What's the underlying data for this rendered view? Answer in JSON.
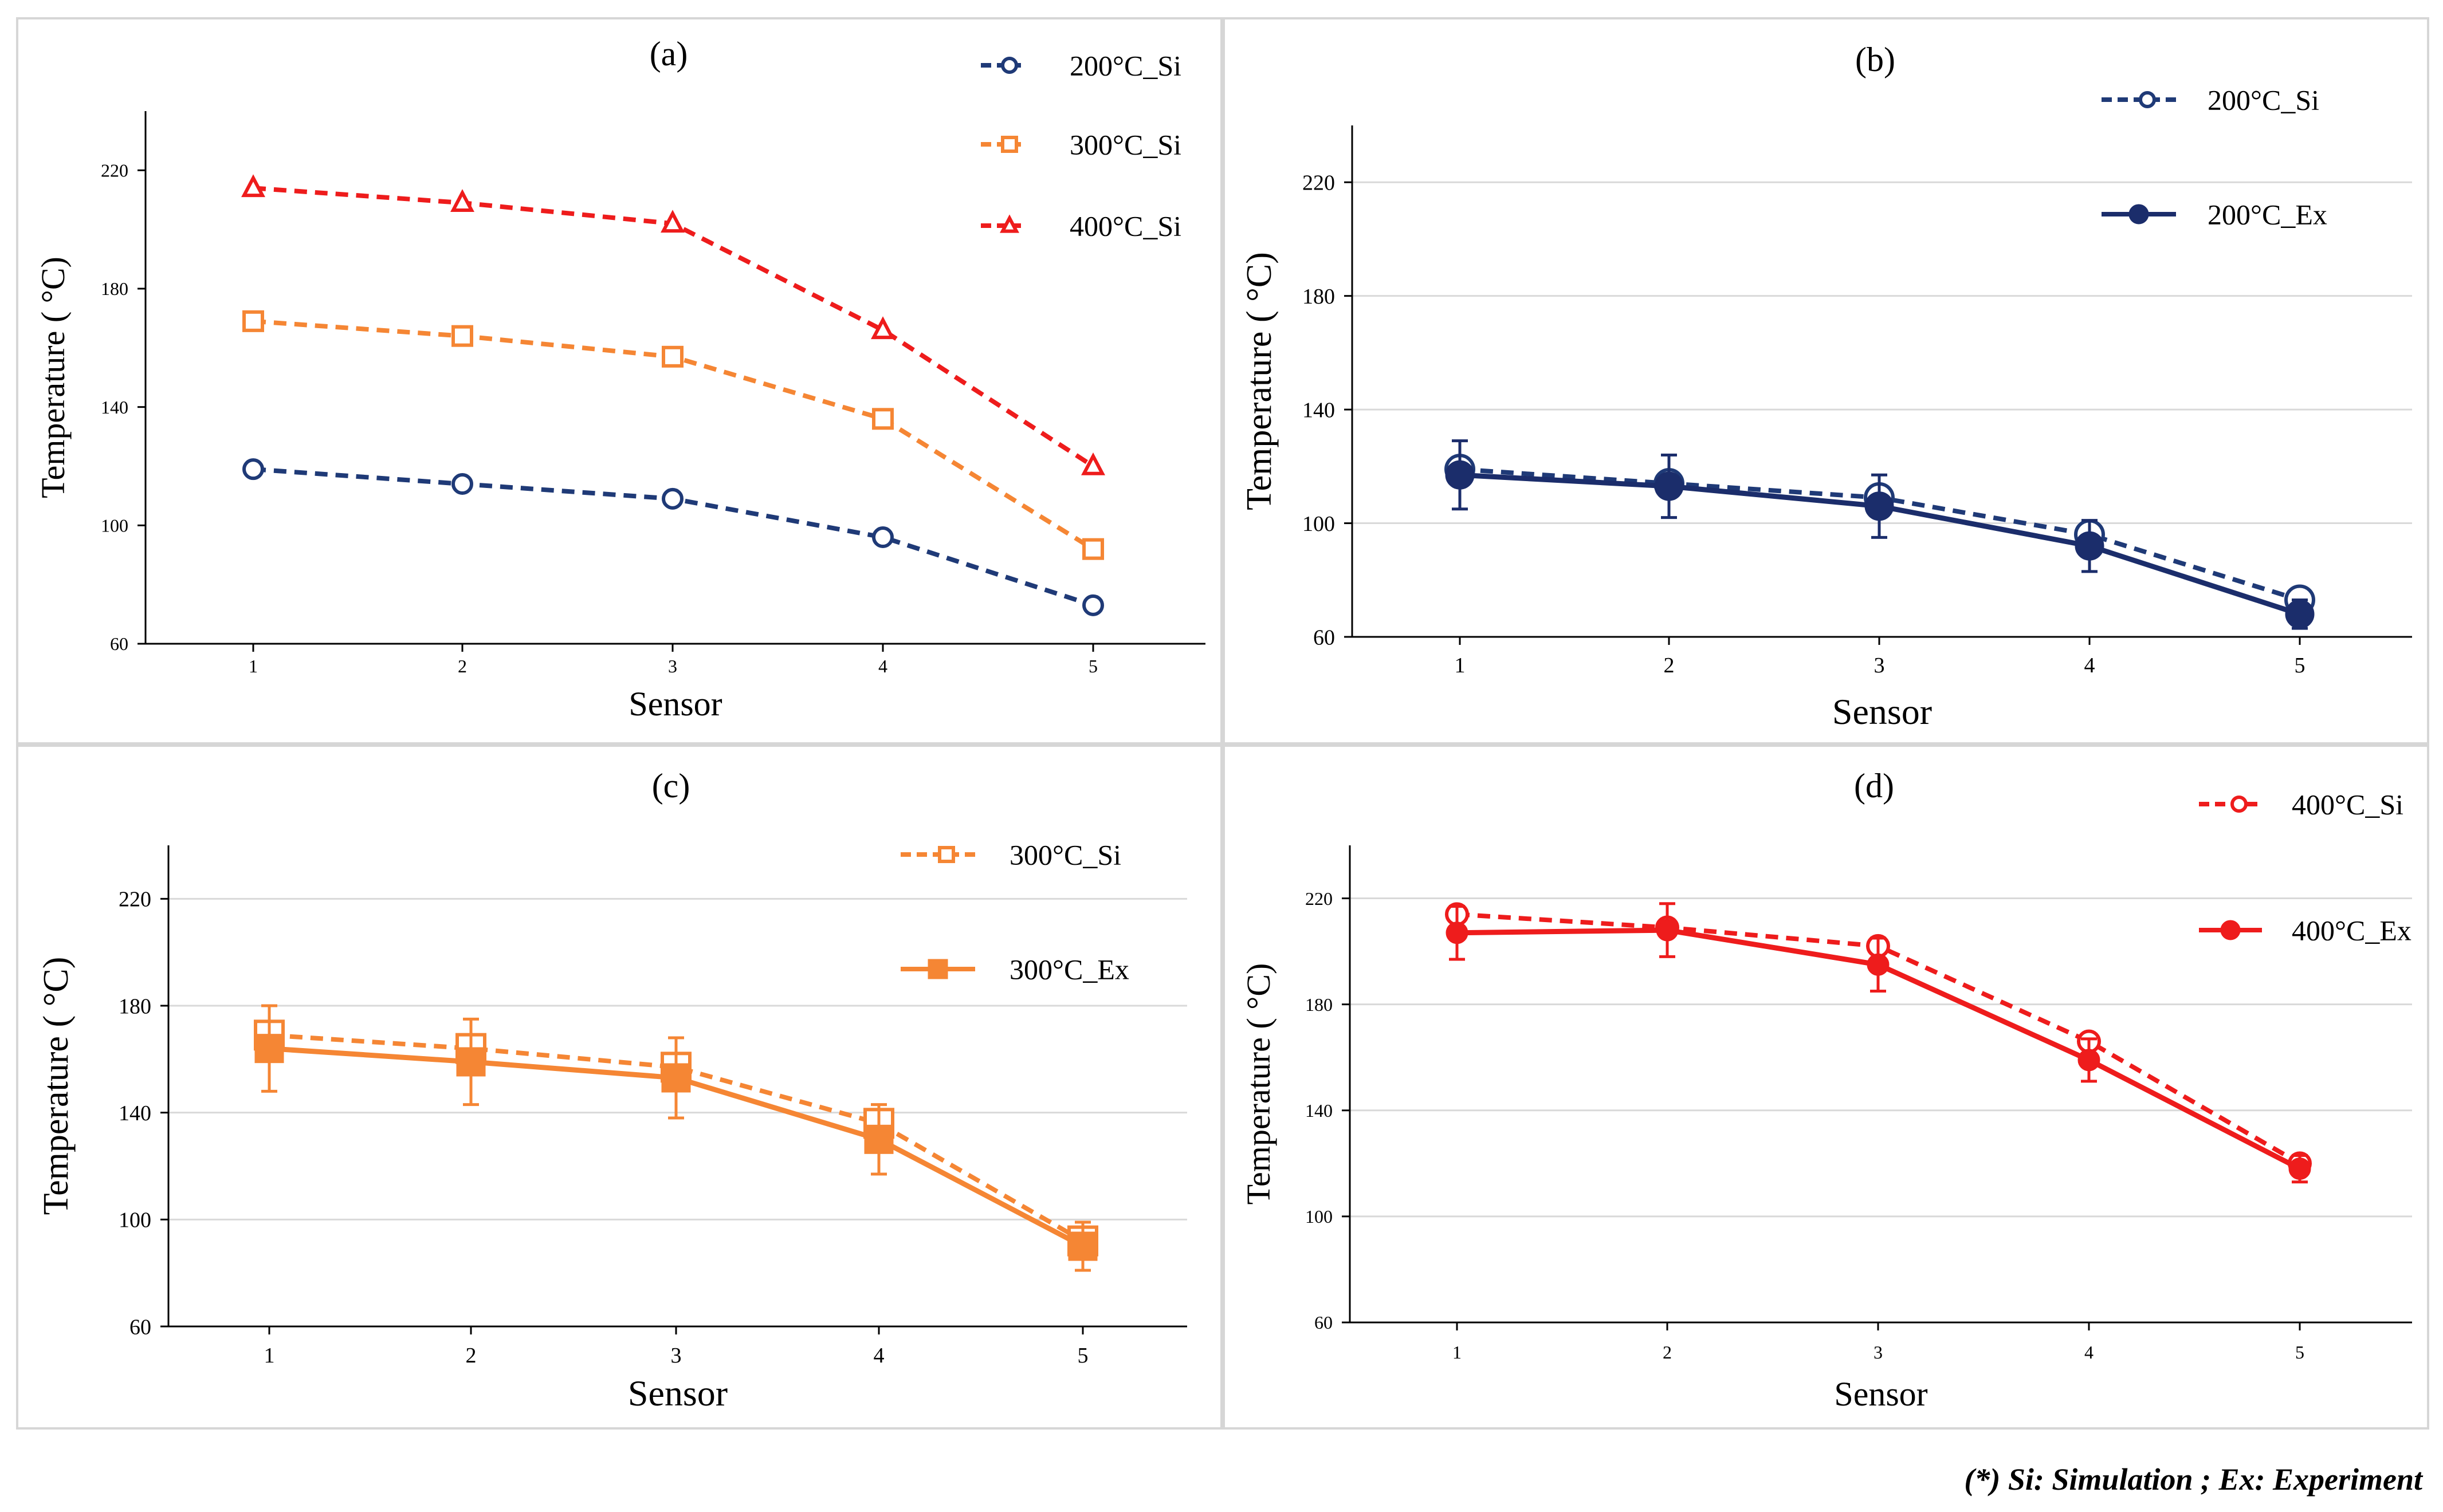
{
  "footnote": "(*) Si: Simulation ; Ex: Experiment",
  "chart_data": [
    {
      "panel": "(a)",
      "type": "line",
      "title": "(a)",
      "xlabel": "Sensor",
      "ylabel": "Temperature ( °C)",
      "categories": [
        "1",
        "2",
        "3",
        "4",
        "5"
      ],
      "ylim": [
        60,
        240
      ],
      "yticks": [
        60,
        100,
        140,
        180,
        220
      ],
      "grid": false,
      "legend": "top-right",
      "series": [
        {
          "name": "200°C_Si",
          "color": "#1f3a77",
          "style": "dashed",
          "marker": "circle-open",
          "values": [
            119,
            114,
            109,
            96,
            73
          ]
        },
        {
          "name": "300°C_Si",
          "color": "#f58634",
          "style": "dashed",
          "marker": "square-open",
          "values": [
            169,
            164,
            157,
            136,
            92
          ]
        },
        {
          "name": "400°C_Si",
          "color": "#ee1c1c",
          "style": "dashed",
          "marker": "triangle-open",
          "values": [
            214,
            209,
            202,
            166,
            120
          ]
        }
      ]
    },
    {
      "panel": "(b)",
      "type": "line",
      "title": "(b)",
      "xlabel": "Sensor",
      "ylabel": "Temperature ( °C)",
      "categories": [
        "1",
        "2",
        "3",
        "4",
        "5"
      ],
      "ylim": [
        60,
        240
      ],
      "yticks": [
        60,
        100,
        140,
        180,
        220
      ],
      "grid": true,
      "legend": "top-right",
      "series": [
        {
          "name": "200°C_Si",
          "color": "#1f3a77",
          "style": "dashed",
          "marker": "circle-open",
          "values": [
            119,
            114,
            109,
            96,
            73
          ]
        },
        {
          "name": "200°C_Ex",
          "color": "#1b2d6b",
          "style": "solid",
          "marker": "circle-filled",
          "values": [
            117,
            113,
            106,
            92,
            68
          ],
          "error": [
            12,
            11,
            11,
            9,
            5
          ]
        }
      ]
    },
    {
      "panel": "(c)",
      "type": "line",
      "title": "(c)",
      "xlabel": "Sensor",
      "ylabel": "Temperature ( °C)",
      "categories": [
        "1",
        "2",
        "3",
        "4",
        "5"
      ],
      "ylim": [
        60,
        240
      ],
      "yticks": [
        60,
        100,
        140,
        180,
        220
      ],
      "grid": true,
      "legend": "top-right",
      "series": [
        {
          "name": "300°C_Si",
          "color": "#f58634",
          "style": "dashed",
          "marker": "square-open",
          "values": [
            169,
            164,
            157,
            136,
            92
          ]
        },
        {
          "name": "300°C_Ex",
          "color": "#f58634",
          "style": "solid",
          "marker": "square-filled",
          "values": [
            164,
            159,
            153,
            130,
            90
          ],
          "error": [
            16,
            16,
            15,
            13,
            9
          ]
        }
      ]
    },
    {
      "panel": "(d)",
      "type": "line",
      "title": "(d)",
      "xlabel": "Sensor",
      "ylabel": "Temperature ( °C)",
      "categories": [
        "1",
        "2",
        "3",
        "4",
        "5"
      ],
      "ylim": [
        60,
        240
      ],
      "yticks": [
        60,
        100,
        140,
        180,
        220
      ],
      "grid": true,
      "legend": "top-right",
      "series": [
        {
          "name": "400°C_Si",
          "color": "#ee1c1c",
          "style": "dashed",
          "marker": "circle-open",
          "values": [
            214,
            209,
            202,
            166,
            120
          ]
        },
        {
          "name": "400°C_Ex",
          "color": "#ee1c1c",
          "style": "solid",
          "marker": "circle-filled",
          "values": [
            207,
            208,
            195,
            159,
            118
          ],
          "error": [
            10,
            10,
            10,
            8,
            5
          ]
        }
      ]
    }
  ]
}
